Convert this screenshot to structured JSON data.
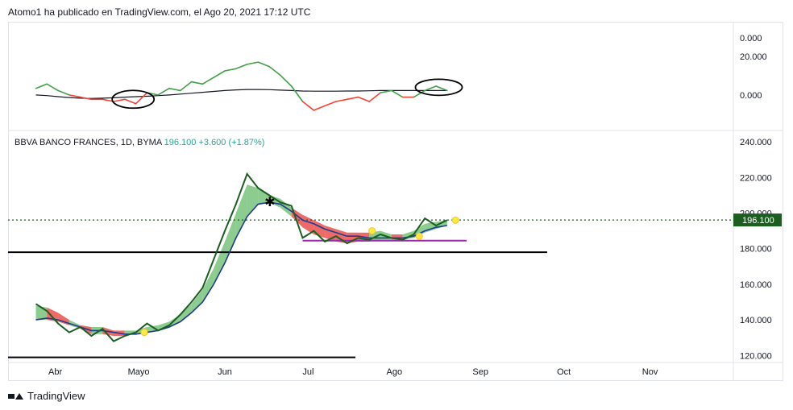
{
  "header": {
    "text": "Atomo1 ha publicado en TradingView.com, el Ago 20, 2021 17:12 UTC"
  },
  "legend": {
    "symbol": "BBVA BANCO FRANCES, 1D, BYMA",
    "price": "196.100",
    "change": "+3.600 (+1.87%)"
  },
  "price_tag": "196.100",
  "footer": {
    "brand": "TradingView"
  },
  "colors": {
    "green_line": "#1b5e20",
    "green_fill": "#66bb6a",
    "red_fill": "#e53935",
    "blue_line": "#1f3a93",
    "osc_green": "#43a047",
    "osc_red": "#f44336",
    "purple": "#9c27b0",
    "dotted": "#1b5e20",
    "tag_bg": "#1b5e20"
  },
  "chart_data": [
    {
      "type": "line",
      "name": "oscillator",
      "yticks": [
        "0.000",
        "20.000",
        "0.000"
      ],
      "ylim": [
        -10,
        25
      ],
      "x": [
        "2021-03-25",
        "2021-03-29",
        "2021-04-02",
        "2021-04-06",
        "2021-04-10",
        "2021-04-14",
        "2021-04-18",
        "2021-04-22",
        "2021-04-26",
        "2021-04-30",
        "2021-05-04",
        "2021-05-08",
        "2021-05-12",
        "2021-05-16",
        "2021-05-20",
        "2021-05-24",
        "2021-05-28",
        "2021-06-01",
        "2021-06-05",
        "2021-06-09",
        "2021-06-13",
        "2021-06-17",
        "2021-06-21",
        "2021-06-25",
        "2021-06-29",
        "2021-07-03",
        "2021-07-07",
        "2021-07-11",
        "2021-07-15",
        "2021-07-19",
        "2021-07-23",
        "2021-07-27",
        "2021-07-31",
        "2021-08-04",
        "2021-08-08",
        "2021-08-12",
        "2021-08-16",
        "2021-08-20"
      ],
      "values": [
        3,
        5,
        2,
        0,
        -1,
        -2,
        -2,
        -3,
        -2,
        -4,
        1,
        0,
        3,
        2,
        6,
        5,
        8,
        11,
        12,
        14,
        15,
        13,
        9,
        4,
        -3,
        -7,
        -5,
        -3,
        -2,
        -1,
        -3,
        1,
        2,
        -1,
        -1,
        2,
        4,
        2
      ],
      "baseline": [
        0,
        -0.3,
        -0.8,
        -1.2,
        -1.5,
        -1.6,
        -1.5,
        -1.3,
        -1.0,
        -0.8,
        -0.6,
        -0.3,
        0,
        0.4,
        0.8,
        1.2,
        1.6,
        2.0,
        2.3,
        2.5,
        2.5,
        2.4,
        2.2,
        2.0,
        1.8,
        1.7,
        1.7,
        1.7,
        1.8,
        1.8,
        1.9,
        2.0,
        2.0,
        2.0,
        2.0,
        2.0,
        2.0,
        2.0
      ]
    },
    {
      "type": "line",
      "name": "price",
      "yticks": [
        "240.000",
        "220.000",
        "200.000",
        "180.000",
        "160.000",
        "140.000",
        "120.000"
      ],
      "ylim": [
        117,
        245
      ],
      "xticks": [
        "Abr",
        "Mayo",
        "Jun",
        "Jul",
        "Ago",
        "Sep",
        "Oct",
        "Nov"
      ],
      "x": [
        "2021-03-25",
        "2021-03-29",
        "2021-04-02",
        "2021-04-06",
        "2021-04-10",
        "2021-04-14",
        "2021-04-18",
        "2021-04-22",
        "2021-04-26",
        "2021-04-30",
        "2021-05-04",
        "2021-05-08",
        "2021-05-12",
        "2021-05-16",
        "2021-05-20",
        "2021-05-24",
        "2021-05-28",
        "2021-06-01",
        "2021-06-05",
        "2021-06-09",
        "2021-06-13",
        "2021-06-17",
        "2021-06-21",
        "2021-06-25",
        "2021-06-29",
        "2021-07-03",
        "2021-07-07",
        "2021-07-11",
        "2021-07-15",
        "2021-07-19",
        "2021-07-23",
        "2021-07-27",
        "2021-07-31",
        "2021-08-04",
        "2021-08-08",
        "2021-08-12",
        "2021-08-16",
        "2021-08-20"
      ],
      "close": [
        149,
        145,
        138,
        133,
        136,
        131,
        135,
        128,
        131,
        133,
        138,
        134,
        137,
        143,
        150,
        158,
        174,
        190,
        205,
        222,
        214,
        210,
        206,
        204,
        186,
        190,
        184,
        187,
        183,
        186,
        185,
        188,
        186,
        185,
        188,
        197,
        193,
        196
      ],
      "ma": [
        140,
        141,
        140,
        138,
        136,
        134,
        134,
        133,
        132,
        132,
        133,
        134,
        136,
        139,
        144,
        150,
        160,
        172,
        186,
        198,
        205,
        206,
        205,
        201,
        196,
        194,
        191,
        189,
        187,
        187,
        186,
        186,
        186,
        186,
        187,
        190,
        192,
        193
      ],
      "cloud_top": [
        148,
        147,
        144,
        140,
        137,
        136,
        136,
        134,
        134,
        134,
        136,
        137,
        139,
        143,
        149,
        157,
        169,
        184,
        200,
        216,
        214,
        210,
        208,
        203,
        199,
        196,
        193,
        191,
        189,
        189,
        189,
        190,
        188,
        188,
        190,
        194,
        195,
        196
      ],
      "cloud_bottom": [
        140,
        140,
        139,
        137,
        135,
        132,
        132,
        131,
        131,
        132,
        133,
        134,
        136,
        139,
        144,
        150,
        160,
        172,
        186,
        198,
        205,
        206,
        203,
        198,
        192,
        188,
        186,
        184,
        183,
        184,
        184,
        185,
        185,
        185,
        186,
        189,
        191,
        193
      ],
      "levels": [
        {
          "value": 196.1,
          "style": "dotted"
        },
        {
          "value": 178,
          "style": "solid"
        },
        {
          "value": 184.5,
          "style": "purple"
        },
        {
          "value": 119,
          "style": "solid"
        }
      ],
      "last_price": 196.1
    }
  ]
}
